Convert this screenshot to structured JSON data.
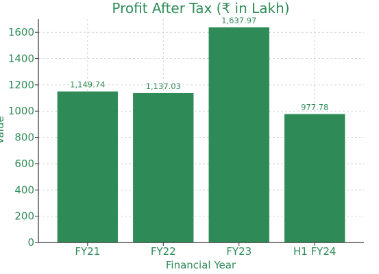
{
  "chart_data": {
    "type": "bar",
    "title": "Profit After Tax (₹ in Lakh)",
    "xlabel": "Financial Year",
    "ylabel": "Value",
    "categories": [
      "FY21",
      "FY22",
      "FY23",
      "H1 FY24"
    ],
    "values": [
      1149.74,
      1137.03,
      1637.97,
      977.78
    ],
    "data_labels": [
      "1,149.74",
      "1,137.03",
      "1,637.97",
      "977.78"
    ],
    "ylim": [
      0,
      1700
    ],
    "yticks": [
      0,
      200,
      400,
      600,
      800,
      1000,
      1200,
      1400,
      1600
    ],
    "grid": true,
    "legend": "none",
    "colors": {
      "bar": "#2e8b57",
      "text": "#2e8b57",
      "axis": "#333333",
      "grid": "#cccccc"
    }
  }
}
